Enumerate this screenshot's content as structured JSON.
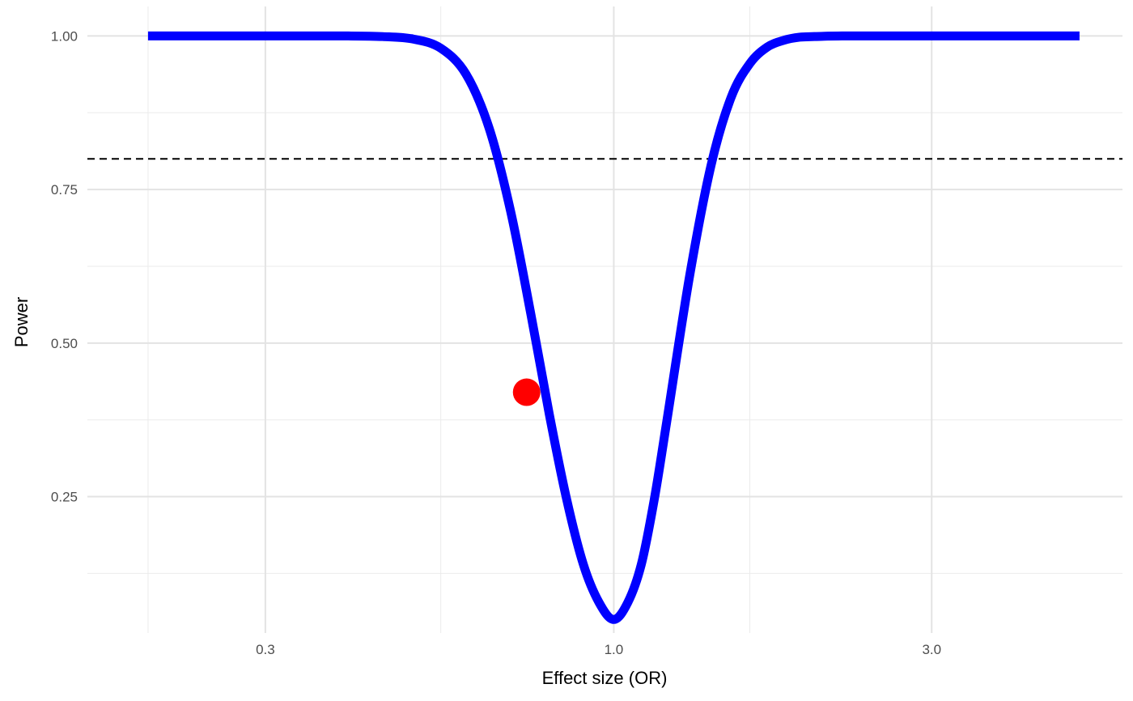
{
  "chart_data": {
    "type": "line",
    "title": "",
    "xlabel": "Effect size (OR)",
    "ylabel": "Power",
    "x_scale": "log",
    "xlim": [
      0.1622,
      5.8
    ],
    "ylim": [
      0.028,
      1.048
    ],
    "x_ticks": [
      {
        "value": 0.3,
        "label": "0.3"
      },
      {
        "value": 1.0,
        "label": "1.0"
      },
      {
        "value": 3.0,
        "label": "3.0"
      }
    ],
    "x_minor_gridlines": [
      0.2,
      0.55,
      1.6
    ],
    "y_ticks": [
      {
        "value": 0.25,
        "label": "0.25"
      },
      {
        "value": 0.5,
        "label": "0.50"
      },
      {
        "value": 0.75,
        "label": "0.75"
      },
      {
        "value": 1.0,
        "label": "1.00"
      }
    ],
    "y_minor_gridlines": [
      0.125,
      0.375,
      0.625,
      0.875
    ],
    "grid": true,
    "series": [
      {
        "color": "#0000ff",
        "x": [
          0.2,
          0.3,
          0.4,
          0.45,
          0.5,
          0.55,
          0.6,
          0.65,
          0.7,
          0.75,
          0.8,
          0.85,
          0.9,
          0.95,
          1.0,
          1.05,
          1.1,
          1.15,
          1.2,
          1.3,
          1.4,
          1.5,
          1.6,
          1.7,
          1.8,
          1.9,
          2.0,
          2.2,
          2.5,
          3.0,
          4.0,
          5.0
        ],
        "y": [
          1.0,
          1.0,
          1.0,
          0.999,
          0.995,
          0.98,
          0.938,
          0.85,
          0.715,
          0.55,
          0.385,
          0.245,
          0.14,
          0.078,
          0.05,
          0.078,
          0.14,
          0.245,
          0.37,
          0.61,
          0.79,
          0.9,
          0.955,
          0.982,
          0.993,
          0.998,
          0.999,
          1.0,
          1.0,
          1.0,
          1.0,
          1.0
        ]
      }
    ],
    "reference_line": {
      "y": 0.8,
      "style": "dashed",
      "color": "#000000"
    },
    "highlight_point": {
      "x": 0.74,
      "y": 0.42,
      "color": "#ff0000"
    }
  }
}
